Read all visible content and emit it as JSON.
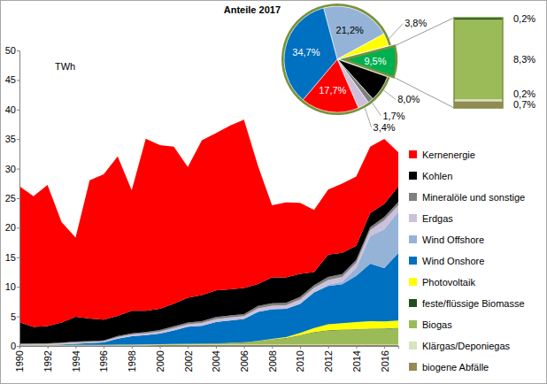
{
  "chart_data": [
    {
      "type": "area",
      "stacked": true,
      "ylabel": "TWh",
      "x": [
        1990,
        1991,
        1992,
        1993,
        1994,
        1995,
        1996,
        1997,
        1998,
        1999,
        2000,
        2001,
        2002,
        2003,
        2004,
        2005,
        2006,
        2007,
        2008,
        2009,
        2010,
        2011,
        2012,
        2013,
        2014,
        2015,
        2016,
        2017
      ],
      "xlim": [
        1990,
        2017
      ],
      "xticks": [
        1990,
        1992,
        1994,
        1996,
        1998,
        2000,
        2002,
        2004,
        2006,
        2008,
        2010,
        2012,
        2014,
        2016
      ],
      "ylim": [
        0,
        50
      ],
      "yticks": [
        0,
        5,
        10,
        15,
        20,
        25,
        30,
        35,
        40,
        45,
        50
      ],
      "grid": false,
      "legend": "right",
      "series": [
        {
          "name": "Kernenergie",
          "color": "#ff0000",
          "values": [
            23,
            22.1,
            23.9,
            17,
            13.4,
            23.4,
            24.6,
            27,
            20.4,
            29.1,
            27.7,
            26.6,
            22.1,
            26.2,
            26.6,
            27.7,
            28.5,
            20,
            12.2,
            12.7,
            12,
            10.5,
            11,
            11.7,
            11.7,
            11.2,
            11,
            5.8
          ]
        },
        {
          "name": "Kohlen",
          "color": "#000000",
          "values": [
            3.6,
            2.8,
            2.9,
            3.4,
            4.2,
            3.8,
            3.5,
            3.4,
            3.8,
            3.6,
            3.6,
            3.8,
            4.2,
            4.4,
            4.5,
            4.4,
            4.4,
            3.7,
            4.4,
            4.3,
            3.9,
            2.2,
            3.8,
            3.6,
            2.4,
            2.4,
            2.2,
            2.6
          ]
        },
        {
          "name": "Mineralöle und sonstige",
          "color": "#7f7f7f",
          "values": [
            0.1,
            0.1,
            0.1,
            0.1,
            0.15,
            0.15,
            0.15,
            0.2,
            0.2,
            0.2,
            0.25,
            0.3,
            0.3,
            0.3,
            0.35,
            0.35,
            0.35,
            0.4,
            0.4,
            0.4,
            0.45,
            0.45,
            0.5,
            0.5,
            0.5,
            0.5,
            0.55,
            0.56
          ]
        },
        {
          "name": "Erdgas",
          "color": "#ccc0da",
          "values": [
            0.15,
            0.15,
            0.15,
            0.2,
            0.2,
            0.2,
            0.2,
            0.25,
            0.3,
            0.3,
            0.35,
            0.4,
            0.4,
            0.5,
            0.5,
            0.5,
            0.5,
            0.6,
            0.6,
            0.6,
            0.7,
            0.7,
            0.8,
            0.8,
            0.9,
            1.0,
            1.5,
            1.1
          ]
        },
        {
          "name": "Wind Offshore",
          "color": "#95b3d7",
          "values": [
            0,
            0,
            0,
            0,
            0,
            0,
            0,
            0,
            0,
            0,
            0,
            0,
            0,
            0,
            0,
            0,
            0,
            0,
            0,
            0,
            0.05,
            0.1,
            0.2,
            0.4,
            1.3,
            4.7,
            6.6,
            7.0
          ]
        },
        {
          "name": "Wind Onshore",
          "color": "#0070c0",
          "values": [
            0,
            0.01,
            0.03,
            0.1,
            0.2,
            0.3,
            0.4,
            1.0,
            1.4,
            1.6,
            1.8,
            2.3,
            2.9,
            3.0,
            3.6,
            3.8,
            3.9,
            4.9,
            5.0,
            4.8,
            4.9,
            6.0,
            6.5,
            6.6,
            7.8,
            9.7,
            9.0,
            11.4
          ]
        },
        {
          "name": "Photovoltaik",
          "color": "#ffff00",
          "values": [
            0,
            0,
            0,
            0,
            0,
            0,
            0,
            0,
            0,
            0,
            0,
            0,
            0,
            0,
            0,
            0.02,
            0.03,
            0.05,
            0.08,
            0.15,
            0.35,
            0.7,
            1.0,
            1.1,
            1.2,
            1.3,
            1.2,
            1.25
          ]
        },
        {
          "name": "feste/flüssige Biomasse",
          "color": "#1f4e1f",
          "values": [
            0,
            0,
            0,
            0,
            0,
            0,
            0,
            0,
            0,
            0,
            0,
            0.01,
            0.02,
            0.03,
            0.03,
            0.04,
            0.05,
            0.05,
            0.06,
            0.06,
            0.07,
            0.07,
            0.07,
            0.07,
            0.07,
            0.07,
            0.07,
            0.07
          ]
        },
        {
          "name": "Biogas",
          "color": "#9bbb59",
          "values": [
            0.01,
            0.01,
            0.01,
            0.01,
            0.02,
            0.02,
            0.02,
            0.03,
            0.03,
            0.04,
            0.05,
            0.08,
            0.1,
            0.12,
            0.15,
            0.2,
            0.3,
            0.5,
            0.8,
            1.0,
            1.5,
            2.0,
            2.3,
            2.4,
            2.5,
            2.55,
            2.6,
            2.7
          ]
        },
        {
          "name": "Klärgas/Deponiegas",
          "color": "#d7e4bd",
          "values": [
            0.05,
            0.05,
            0.06,
            0.06,
            0.07,
            0.07,
            0.08,
            0.08,
            0.09,
            0.09,
            0.1,
            0.1,
            0.1,
            0.1,
            0.1,
            0.1,
            0.1,
            0.09,
            0.09,
            0.09,
            0.08,
            0.08,
            0.08,
            0.08,
            0.07,
            0.07,
            0.07,
            0.07
          ]
        },
        {
          "name": "biogene Abfälle",
          "color": "#948a54",
          "values": [
            0.1,
            0.1,
            0.1,
            0.1,
            0.1,
            0.1,
            0.1,
            0.12,
            0.12,
            0.12,
            0.14,
            0.14,
            0.15,
            0.15,
            0.16,
            0.16,
            0.17,
            0.18,
            0.18,
            0.19,
            0.2,
            0.2,
            0.21,
            0.21,
            0.22,
            0.22,
            0.23,
            0.23
          ]
        }
      ]
    },
    {
      "type": "pie",
      "title": "Anteile 2017",
      "values": [
        21.2,
        3.8,
        9.5,
        8.0,
        1.7,
        3.4,
        17.7,
        34.7
      ],
      "value_labels": [
        "21,2%",
        "3,8%",
        "9,5%",
        "8,0%",
        "1,7%",
        "3,4%",
        "17,7%",
        "34,7%"
      ],
      "colors": [
        "#95b3d7",
        "#ffff00",
        "#00b050",
        "#000000",
        "#7f7f7f",
        "#ccc0da",
        "#ff0000",
        "#0070c0"
      ],
      "data_labels": true
    },
    {
      "type": "bar",
      "stacked": true,
      "values": [
        0.7,
        0.2,
        8.3,
        0.2
      ],
      "value_labels": [
        "0,7%",
        "0,2%",
        "8,3%",
        "0,2%"
      ],
      "colors": [
        "#948a54",
        "#d7e4bd",
        "#9bbb59",
        "#1f4e1f"
      ],
      "data_labels": true,
      "tick_labels": false
    }
  ]
}
